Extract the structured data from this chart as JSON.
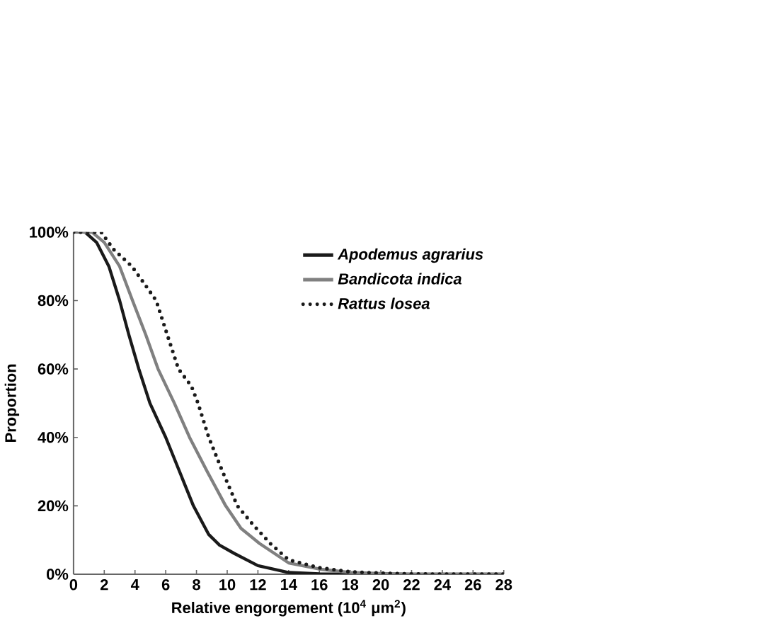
{
  "chart_data": {
    "type": "line",
    "xlabel": "Relative engorgement (10$^{4}$ μm$^{2}$)",
    "ylabel": "Proportion",
    "xlim": [
      0,
      28
    ],
    "xticks": [
      0,
      2,
      4,
      6,
      8,
      10,
      12,
      14,
      16,
      18,
      20,
      22,
      24,
      26,
      28
    ],
    "ylim": [
      0,
      100
    ],
    "yticks": [
      {
        "value": 0,
        "label": "0%"
      },
      {
        "value": 20,
        "label": "20%"
      },
      {
        "value": 40,
        "label": "40%"
      },
      {
        "value": 60,
        "label": "60%"
      },
      {
        "value": 80,
        "label": "80%"
      },
      {
        "value": 100,
        "label": "100%"
      }
    ],
    "grid": false,
    "legend": "top right",
    "marker": "none",
    "series": [
      {
        "name": "Apodemus agrarius",
        "color": "#1a1a1a",
        "line_style": "solid",
        "x": [
          0,
          0.75,
          1.5,
          2.3,
          3.0,
          3.6,
          4.25,
          4.97,
          6.0,
          6.9,
          7.8,
          8.8,
          9.5,
          10.45,
          12,
          14,
          16,
          18,
          28
        ],
        "values": [
          100,
          100,
          97,
          90,
          80,
          70,
          60,
          50,
          40,
          30,
          20,
          11.6,
          8.5,
          6.1,
          2.5,
          0.5,
          0.1,
          0,
          0
        ]
      },
      {
        "name": "Bandicota indica",
        "color": "#808080",
        "line_style": "solid",
        "x": [
          0,
          1.2,
          2,
          3,
          3.84,
          4.7,
          5.5,
          6.56,
          7.55,
          8.7,
          9.9,
          10.9,
          12.1,
          14,
          16,
          18,
          20,
          22,
          28
        ],
        "values": [
          100,
          100,
          97,
          90,
          80,
          70,
          60,
          50,
          40,
          30,
          20,
          13.4,
          9,
          3.3,
          1.5,
          0.5,
          0.2,
          0,
          0
        ]
      },
      {
        "name": "Rattus losea",
        "color": "#1a1a1a",
        "line_style": "dotted",
        "x": [
          0,
          1.8,
          2.6,
          3.8,
          4.6,
          5.38,
          6.1,
          6.83,
          7.67,
          8.1,
          8.8,
          9.7,
          10.66,
          11.7,
          12.8,
          14,
          16,
          18,
          20,
          22,
          24,
          28
        ],
        "values": [
          100,
          100,
          95,
          90,
          85,
          80,
          70,
          60,
          55,
          50,
          40,
          30,
          20,
          14.4,
          9,
          4.2,
          1.9,
          0.7,
          0.3,
          0.1,
          0,
          0
        ]
      }
    ]
  }
}
